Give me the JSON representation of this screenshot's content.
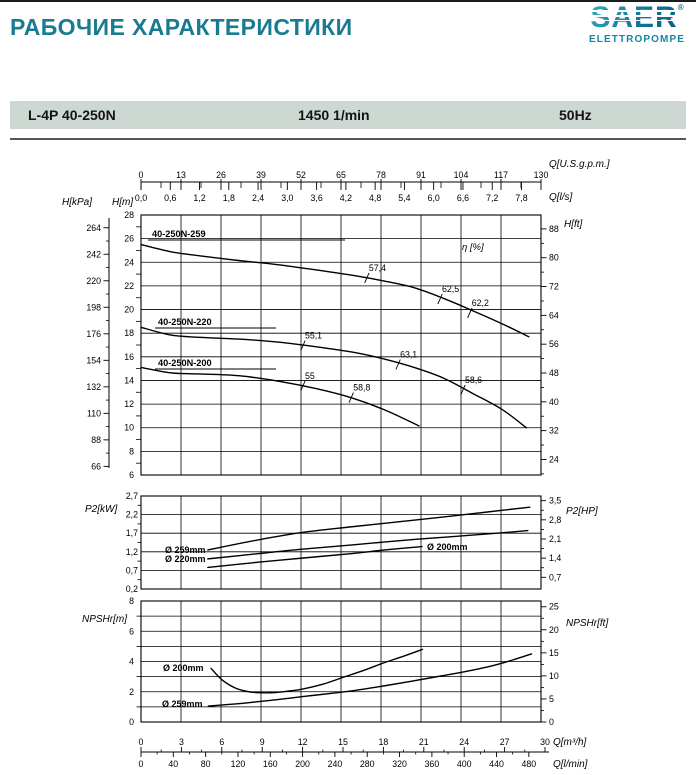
{
  "header": {
    "title": "РАБОЧИЕ ХАРАКТЕРИСТИКИ",
    "logo": {
      "brand": "SAER",
      "reg": "®",
      "sub": "ELETTROPOMPE"
    }
  },
  "product": {
    "model": "L-4P 40-250N",
    "speed": "1450 1/min",
    "frequency": "50Hz"
  },
  "colors": {
    "accent": "#197b91",
    "logo_teal": "#0d7fa2",
    "bar_bg": "#cdd8d2",
    "line": "#000000"
  },
  "chart_data": [
    {
      "type": "line",
      "name": "head-vs-flow",
      "x_axis": {
        "primary_unit": "Q[U.S.g.p.m.]",
        "primary_ticks": [
          0,
          13,
          26,
          39,
          52,
          65,
          78,
          91,
          104,
          117,
          130
        ],
        "secondary_unit": "Q[l/s]",
        "secondary_ticks": [
          "0,0",
          "0,6",
          "1,2",
          "1,8",
          "2,4",
          "3,0",
          "3,6",
          "4,2",
          "4,8",
          "5,4",
          "6,0",
          "6,6",
          "7,2",
          "7,8"
        ],
        "range_ls": [
          0,
          8.2
        ]
      },
      "y_axis": {
        "outer_unit": "H[kPa]",
        "outer_ticks": [
          264,
          242,
          220,
          198,
          176,
          154,
          132,
          110,
          88,
          66
        ],
        "left_unit": "H[m]",
        "left_ticks": [
          28,
          26,
          24,
          22,
          20,
          18,
          16,
          14,
          12,
          10,
          8,
          6
        ],
        "right_unit": "H[ft]",
        "right_ticks": [
          88,
          80,
          72,
          64,
          56,
          48,
          40,
          32,
          24
        ],
        "range_m": [
          6,
          28
        ]
      },
      "efficiency_axis_label": "η [%]",
      "series": [
        {
          "name": "40-250N-259",
          "points": [
            [
              0,
              25.5
            ],
            [
              0.6,
              24.9
            ],
            [
              1.2,
              24.55
            ],
            [
              2.0,
              24.15
            ],
            [
              2.8,
              23.8
            ],
            [
              3.6,
              23.35
            ],
            [
              4.4,
              22.85
            ],
            [
              5.0,
              22.4
            ],
            [
              5.6,
              21.85
            ],
            [
              6.2,
              20.95
            ],
            [
              6.8,
              19.9
            ],
            [
              7.4,
              18.8
            ],
            [
              7.95,
              17.7
            ]
          ]
        },
        {
          "name": "40-250N-220",
          "points": [
            [
              0,
              18.5
            ],
            [
              0.6,
              17.85
            ],
            [
              1.2,
              17.65
            ],
            [
              2.0,
              17.5
            ],
            [
              2.8,
              17.25
            ],
            [
              3.6,
              16.85
            ],
            [
              4.4,
              16.35
            ],
            [
              5.0,
              15.8
            ],
            [
              5.6,
              15.1
            ],
            [
              6.2,
              14.2
            ],
            [
              6.8,
              12.9
            ],
            [
              7.4,
              11.55
            ],
            [
              7.9,
              10.0
            ]
          ]
        },
        {
          "name": "40-250N-200",
          "points": [
            [
              0,
              15.1
            ],
            [
              0.6,
              14.65
            ],
            [
              1.2,
              14.55
            ],
            [
              2.0,
              14.4
            ],
            [
              2.8,
              13.95
            ],
            [
              3.6,
              13.3
            ],
            [
              4.3,
              12.55
            ],
            [
              5.0,
              11.5
            ],
            [
              5.7,
              10.15
            ]
          ]
        }
      ],
      "efficiency_markers": [
        {
          "series": 0,
          "q": 4.63,
          "h": 22.67,
          "label": "57,4"
        },
        {
          "series": 0,
          "q": 6.13,
          "h": 20.89,
          "label": "62,5"
        },
        {
          "series": 0,
          "q": 6.74,
          "h": 19.71,
          "label": "62,2"
        },
        {
          "series": 1,
          "q": 3.32,
          "h": 16.95,
          "label": "55,1"
        },
        {
          "series": 1,
          "q": 5.27,
          "h": 15.35,
          "label": "63,1"
        },
        {
          "series": 1,
          "q": 6.6,
          "h": 13.2,
          "label": "58,6"
        },
        {
          "series": 2,
          "q": 3.32,
          "h": 13.55,
          "label": "55"
        },
        {
          "series": 2,
          "q": 4.31,
          "h": 12.55,
          "label": "58,8"
        }
      ]
    },
    {
      "type": "line",
      "name": "power-vs-flow",
      "y_axis": {
        "left_unit": "P2[kW]",
        "left_ticks": [
          "2,7",
          "2,2",
          "1,7",
          "1,2",
          "0,7",
          "0,2"
        ],
        "right_unit": "P2[HP]",
        "right_ticks": [
          "3,5",
          "2,8",
          "2,1",
          "1,4",
          "0,7"
        ],
        "range_kw": [
          0.2,
          2.7
        ]
      },
      "series": [
        {
          "name": "Ø 259mm",
          "points": [
            [
              1.37,
              1.25
            ],
            [
              2.4,
              1.52
            ],
            [
              3.3,
              1.72
            ],
            [
              4.3,
              1.87
            ],
            [
              5.3,
              2.01
            ],
            [
              6.3,
              2.15
            ],
            [
              7.1,
              2.27
            ],
            [
              7.97,
              2.4
            ]
          ]
        },
        {
          "name": "Ø 220mm",
          "points": [
            [
              1.37,
              1.01
            ],
            [
              2.4,
              1.15
            ],
            [
              3.3,
              1.27
            ],
            [
              4.3,
              1.38
            ],
            [
              5.3,
              1.5
            ],
            [
              6.3,
              1.6
            ],
            [
              7.2,
              1.69
            ],
            [
              7.93,
              1.77
            ]
          ]
        },
        {
          "name": "Ø 200mm",
          "points": [
            [
              1.37,
              0.78
            ],
            [
              2.4,
              0.92
            ],
            [
              3.3,
              1.03
            ],
            [
              4.3,
              1.15
            ],
            [
              5.0,
              1.25
            ],
            [
              5.76,
              1.34
            ]
          ]
        }
      ]
    },
    {
      "type": "line",
      "name": "npshr-vs-flow",
      "y_axis": {
        "left_unit": "NPSHr[m]",
        "left_ticks": [
          8,
          6,
          4,
          2,
          0
        ],
        "right_unit": "NPSHr[ft]",
        "right_ticks": [
          25,
          20,
          15,
          10,
          5,
          0
        ],
        "range_m": [
          0,
          8
        ]
      },
      "x_axis": {
        "primary_unit": "Q[m³/h]",
        "primary_ticks": [
          0,
          3,
          6,
          9,
          12,
          15,
          18,
          21,
          24,
          27,
          30
        ],
        "secondary_unit": "Q[l/min]",
        "secondary_ticks": [
          0,
          40,
          80,
          120,
          160,
          200,
          240,
          280,
          320,
          360,
          400,
          440,
          480
        ],
        "range_m3h": [
          0,
          30
        ]
      },
      "series": [
        {
          "name": "Ø 200mm",
          "points": [
            [
              5.2,
              3.55
            ],
            [
              6,
              2.8
            ],
            [
              7,
              2.25
            ],
            [
              8,
              2.0
            ],
            [
              9,
              1.93
            ],
            [
              10,
              1.95
            ],
            [
              11,
              2.05
            ],
            [
              12,
              2.18
            ],
            [
              13.5,
              2.5
            ],
            [
              15,
              2.95
            ],
            [
              16.5,
              3.4
            ],
            [
              18,
              3.9
            ],
            [
              19.5,
              4.35
            ],
            [
              20.9,
              4.8
            ]
          ]
        },
        {
          "name": "Ø 259mm",
          "points": [
            [
              5,
              1.05
            ],
            [
              6.5,
              1.16
            ],
            [
              8,
              1.28
            ],
            [
              10,
              1.47
            ],
            [
              12,
              1.68
            ],
            [
              14,
              1.88
            ],
            [
              16,
              2.1
            ],
            [
              18,
              2.38
            ],
            [
              20,
              2.68
            ],
            [
              22,
              3.0
            ],
            [
              24,
              3.32
            ],
            [
              26,
              3.7
            ],
            [
              27.6,
              4.1
            ],
            [
              29,
              4.5
            ]
          ]
        }
      ]
    }
  ]
}
